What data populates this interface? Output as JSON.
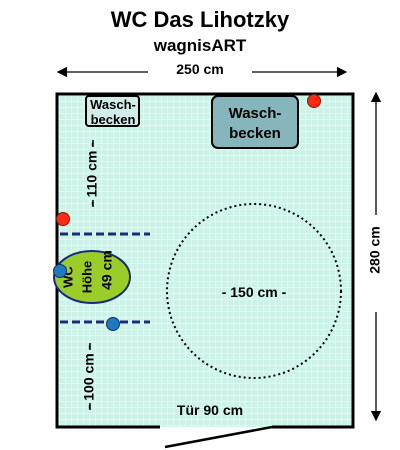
{
  "title": "WC Das Lihotzky",
  "subtitle": "wagnisART",
  "dimensions": {
    "width": "250 cm",
    "depth": "280 cm",
    "upper_gap": "110 cm",
    "lower_gap": "100 cm",
    "turning_circle": "150 cm",
    "door": "Tür 90 cm"
  },
  "fixtures": {
    "small_basin": [
      "Wasch-",
      "becken"
    ],
    "large_basin": [
      "Wasch-",
      "becken"
    ],
    "wc": [
      "WC",
      "Höhe",
      "49 cm"
    ]
  },
  "colors": {
    "floor": "#cdf3e8",
    "grid": "#ffffff",
    "wall": "#000000",
    "basin_fill": "#86b6bc",
    "wc_fill": "#9acd2a",
    "red_marker": "#ff2a12",
    "blue_marker": "#1f78c0",
    "dash_line": "#1b2a7a"
  }
}
